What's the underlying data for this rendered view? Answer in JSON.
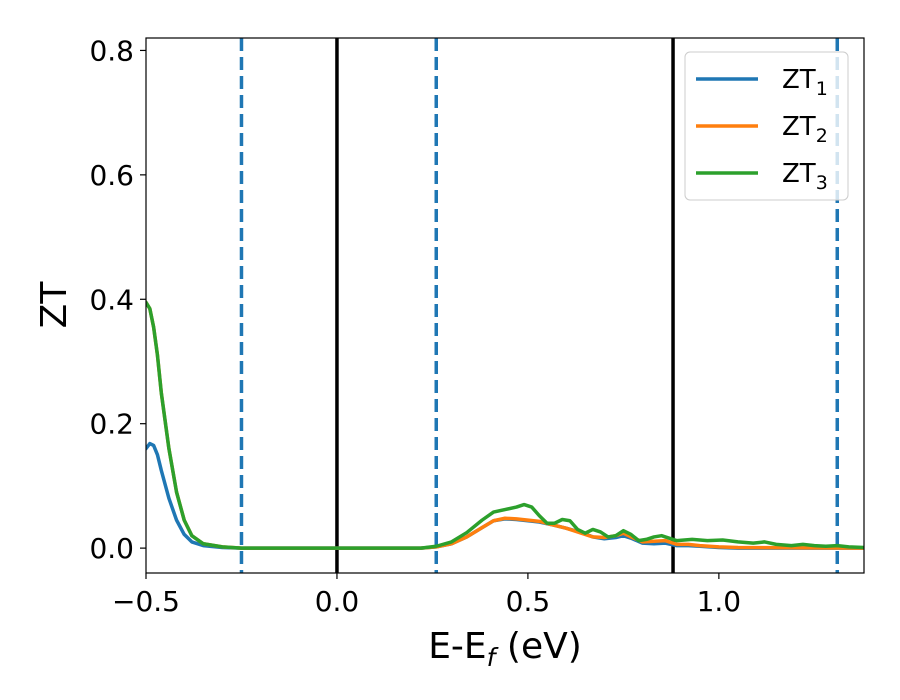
{
  "chart_data": {
    "type": "line",
    "title": "",
    "xlabel": {
      "main": "E-E",
      "sub": "f",
      "unit": " (eV)"
    },
    "ylabel": "ZT",
    "xlim": [
      -0.5,
      1.38
    ],
    "ylim": [
      -0.04,
      0.82
    ],
    "xticks": [
      -0.5,
      0.0,
      0.5,
      1.0
    ],
    "xtick_labels": [
      "−0.5",
      "0.0",
      "0.5",
      "1.0"
    ],
    "yticks": [
      0.0,
      0.2,
      0.4,
      0.6,
      0.8
    ],
    "ytick_labels": [
      "0.0",
      "0.2",
      "0.4",
      "0.6",
      "0.8"
    ],
    "grid": false,
    "legend_position": "top-right",
    "vlines": [
      {
        "x": -0.25,
        "style": "dashed",
        "color": "#1f77b4"
      },
      {
        "x": 0.0,
        "style": "solid",
        "color": "#000000"
      },
      {
        "x": 0.26,
        "style": "dashed",
        "color": "#1f77b4"
      },
      {
        "x": 0.88,
        "style": "solid",
        "color": "#000000"
      },
      {
        "x": 1.31,
        "style": "dashed",
        "color": "#1f77b4"
      }
    ],
    "series": [
      {
        "name": "ZT",
        "name_sub": "1",
        "color": "#1f77b4",
        "points": [
          [
            -0.5,
            0.16
          ],
          [
            -0.49,
            0.168
          ],
          [
            -0.48,
            0.165
          ],
          [
            -0.47,
            0.15
          ],
          [
            -0.46,
            0.125
          ],
          [
            -0.44,
            0.08
          ],
          [
            -0.42,
            0.045
          ],
          [
            -0.4,
            0.022
          ],
          [
            -0.38,
            0.01
          ],
          [
            -0.35,
            0.004
          ],
          [
            -0.3,
            0.001
          ],
          [
            -0.25,
            0.0
          ],
          [
            0.0,
            0.0
          ],
          [
            0.22,
            0.0
          ],
          [
            0.26,
            0.002
          ],
          [
            0.3,
            0.007
          ],
          [
            0.34,
            0.018
          ],
          [
            0.38,
            0.033
          ],
          [
            0.41,
            0.044
          ],
          [
            0.44,
            0.047
          ],
          [
            0.47,
            0.046
          ],
          [
            0.5,
            0.044
          ],
          [
            0.53,
            0.042
          ],
          [
            0.56,
            0.038
          ],
          [
            0.6,
            0.032
          ],
          [
            0.64,
            0.025
          ],
          [
            0.67,
            0.018
          ],
          [
            0.7,
            0.015
          ],
          [
            0.73,
            0.017
          ],
          [
            0.75,
            0.02
          ],
          [
            0.77,
            0.016
          ],
          [
            0.8,
            0.008
          ],
          [
            0.83,
            0.007
          ],
          [
            0.86,
            0.008
          ],
          [
            0.89,
            0.004
          ],
          [
            0.92,
            0.004
          ],
          [
            0.95,
            0.003
          ],
          [
            1.0,
            0.001
          ],
          [
            1.05,
            0.0
          ],
          [
            1.38,
            0.0
          ]
        ]
      },
      {
        "name": "ZT",
        "name_sub": "2",
        "color": "#ff7f0e",
        "points": [
          [
            -0.5,
            0.395
          ],
          [
            -0.49,
            0.385
          ],
          [
            -0.48,
            0.355
          ],
          [
            -0.47,
            0.31
          ],
          [
            -0.46,
            0.25
          ],
          [
            -0.44,
            0.16
          ],
          [
            -0.42,
            0.09
          ],
          [
            -0.4,
            0.045
          ],
          [
            -0.38,
            0.02
          ],
          [
            -0.35,
            0.007
          ],
          [
            -0.3,
            0.002
          ],
          [
            -0.25,
            0.0
          ],
          [
            0.0,
            0.0
          ],
          [
            0.22,
            0.0
          ],
          [
            0.26,
            0.002
          ],
          [
            0.3,
            0.007
          ],
          [
            0.34,
            0.018
          ],
          [
            0.38,
            0.033
          ],
          [
            0.41,
            0.044
          ],
          [
            0.44,
            0.048
          ],
          [
            0.47,
            0.047
          ],
          [
            0.5,
            0.045
          ],
          [
            0.53,
            0.043
          ],
          [
            0.56,
            0.038
          ],
          [
            0.6,
            0.032
          ],
          [
            0.64,
            0.024
          ],
          [
            0.67,
            0.018
          ],
          [
            0.7,
            0.017
          ],
          [
            0.73,
            0.02
          ],
          [
            0.75,
            0.024
          ],
          [
            0.77,
            0.018
          ],
          [
            0.8,
            0.01
          ],
          [
            0.83,
            0.011
          ],
          [
            0.86,
            0.012
          ],
          [
            0.89,
            0.006
          ],
          [
            0.92,
            0.006
          ],
          [
            0.95,
            0.004
          ],
          [
            1.0,
            0.002
          ],
          [
            1.05,
            0.001
          ],
          [
            1.38,
            0.0
          ]
        ]
      },
      {
        "name": "ZT",
        "name_sub": "3",
        "color": "#2ca02c",
        "points": [
          [
            -0.5,
            0.395
          ],
          [
            -0.49,
            0.385
          ],
          [
            -0.48,
            0.355
          ],
          [
            -0.47,
            0.31
          ],
          [
            -0.46,
            0.25
          ],
          [
            -0.44,
            0.16
          ],
          [
            -0.42,
            0.09
          ],
          [
            -0.4,
            0.045
          ],
          [
            -0.38,
            0.02
          ],
          [
            -0.35,
            0.007
          ],
          [
            -0.3,
            0.002
          ],
          [
            -0.25,
            0.0
          ],
          [
            0.0,
            0.0
          ],
          [
            0.22,
            0.0
          ],
          [
            0.26,
            0.003
          ],
          [
            0.3,
            0.01
          ],
          [
            0.34,
            0.025
          ],
          [
            0.38,
            0.045
          ],
          [
            0.41,
            0.058
          ],
          [
            0.44,
            0.062
          ],
          [
            0.47,
            0.066
          ],
          [
            0.49,
            0.07
          ],
          [
            0.51,
            0.066
          ],
          [
            0.53,
            0.052
          ],
          [
            0.55,
            0.04
          ],
          [
            0.57,
            0.04
          ],
          [
            0.59,
            0.046
          ],
          [
            0.61,
            0.044
          ],
          [
            0.63,
            0.03
          ],
          [
            0.65,
            0.024
          ],
          [
            0.67,
            0.03
          ],
          [
            0.69,
            0.026
          ],
          [
            0.71,
            0.018
          ],
          [
            0.73,
            0.02
          ],
          [
            0.75,
            0.028
          ],
          [
            0.77,
            0.022
          ],
          [
            0.79,
            0.012
          ],
          [
            0.81,
            0.014
          ],
          [
            0.83,
            0.018
          ],
          [
            0.85,
            0.02
          ],
          [
            0.87,
            0.016
          ],
          [
            0.89,
            0.012
          ],
          [
            0.93,
            0.014
          ],
          [
            0.97,
            0.012
          ],
          [
            1.01,
            0.013
          ],
          [
            1.05,
            0.01
          ],
          [
            1.09,
            0.008
          ],
          [
            1.12,
            0.01
          ],
          [
            1.15,
            0.006
          ],
          [
            1.19,
            0.004
          ],
          [
            1.22,
            0.006
          ],
          [
            1.25,
            0.004
          ],
          [
            1.28,
            0.003
          ],
          [
            1.31,
            0.004
          ],
          [
            1.34,
            0.002
          ],
          [
            1.38,
            0.001
          ]
        ]
      }
    ]
  }
}
